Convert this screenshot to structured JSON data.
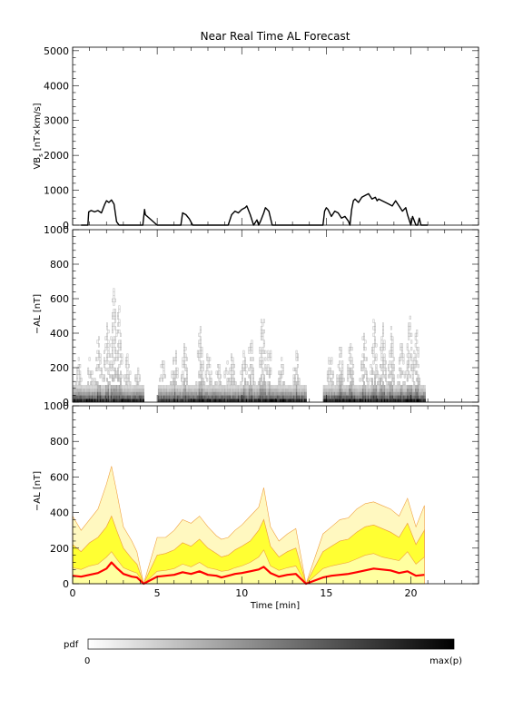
{
  "title": "Near Real Time AL Forecast",
  "colorbar": {
    "label": "pdf",
    "min_label": "0",
    "max_label": "max(p)",
    "from_color": "#ffffff",
    "to_color": "#000000"
  },
  "chart_data": [
    {
      "type": "line",
      "panel": "vbs",
      "ylabel": "VB",
      "ylabel_sub": "s",
      "ylabel_units": "[nT×km/s]",
      "ylim": [
        0,
        5100
      ],
      "yticks": [
        0,
        1000,
        2000,
        3000,
        4000,
        5000
      ],
      "xlim": [
        0,
        24
      ],
      "line_color": "#000000",
      "x": [
        0.5,
        0.9,
        0.95,
        1.1,
        1.3,
        1.5,
        1.7,
        1.9,
        2.0,
        2.15,
        2.3,
        2.45,
        2.6,
        2.75,
        3.0,
        4.0,
        4.15,
        4.25,
        4.3,
        5.0,
        5.05,
        5.15,
        5.25,
        5.5,
        6.0,
        6.3,
        6.4,
        6.5,
        6.7,
        6.9,
        7.1,
        8.0,
        8.5,
        8.8,
        9.0,
        9.2,
        9.4,
        9.6,
        9.8,
        10.0,
        10.2,
        10.3,
        10.5,
        10.7,
        10.9,
        11.0,
        11.1,
        11.3,
        11.4,
        11.6,
        11.8,
        12.0,
        12.5,
        13.0,
        13.5,
        14.0,
        14.5,
        14.8,
        14.9,
        15.0,
        15.1,
        15.3,
        15.5,
        15.7,
        15.9,
        16.1,
        16.3,
        16.4,
        16.5,
        16.6,
        16.7,
        16.9,
        17.1,
        17.3,
        17.5,
        17.7,
        17.9,
        18.0,
        18.1,
        18.3,
        18.5,
        18.7,
        18.9,
        19.1,
        19.3,
        19.5,
        19.7,
        19.8,
        20.0,
        20.1,
        20.3,
        20.4,
        20.5,
        20.6,
        20.7,
        20.8,
        21.0
      ],
      "y": [
        0,
        0,
        380,
        420,
        380,
        420,
        350,
        600,
        700,
        650,
        720,
        600,
        100,
        0,
        0,
        0,
        0,
        450,
        300,
        0,
        0,
        0,
        0,
        0,
        0,
        0,
        0,
        350,
        300,
        180,
        0,
        0,
        0,
        0,
        0,
        0,
        300,
        400,
        350,
        450,
        500,
        550,
        300,
        0,
        150,
        0,
        100,
        350,
        500,
        400,
        0,
        0,
        0,
        0,
        0,
        0,
        0,
        0,
        400,
        500,
        450,
        250,
        400,
        350,
        200,
        250,
        120,
        0,
        450,
        700,
        750,
        650,
        800,
        850,
        900,
        750,
        800,
        700,
        750,
        700,
        650,
        600,
        550,
        700,
        550,
        400,
        500,
        300,
        0,
        250,
        0,
        0,
        200,
        0,
        0,
        0,
        0
      ]
    },
    {
      "type": "heatmap",
      "panel": "pdf",
      "ylabel": "−AL [nT]",
      "ylim": [
        0,
        1000
      ],
      "yticks": [
        0,
        200,
        400,
        600,
        800,
        1000
      ],
      "xlim": [
        0,
        24
      ],
      "cmap": "white-to-black",
      "active_intervals": [
        [
          0,
          4.2
        ],
        [
          5.0,
          13.8
        ],
        [
          14.8,
          20.8
        ]
      ],
      "peaks": [
        {
          "x": 0.35,
          "h": 250
        },
        {
          "x": 1.0,
          "h": 260
        },
        {
          "x": 1.5,
          "h": 380
        },
        {
          "x": 2.0,
          "h": 480
        },
        {
          "x": 2.4,
          "h": 680
        },
        {
          "x": 2.7,
          "h": 560
        },
        {
          "x": 3.2,
          "h": 280
        },
        {
          "x": 3.8,
          "h": 200
        },
        {
          "x": 5.3,
          "h": 260
        },
        {
          "x": 6.0,
          "h": 330
        },
        {
          "x": 6.6,
          "h": 350
        },
        {
          "x": 7.5,
          "h": 430
        },
        {
          "x": 8.0,
          "h": 300
        },
        {
          "x": 8.6,
          "h": 270
        },
        {
          "x": 9.1,
          "h": 250
        },
        {
          "x": 9.4,
          "h": 290
        },
        {
          "x": 10.1,
          "h": 330
        },
        {
          "x": 10.5,
          "h": 380
        },
        {
          "x": 11.2,
          "h": 540
        },
        {
          "x": 11.6,
          "h": 330
        },
        {
          "x": 12.3,
          "h": 250
        },
        {
          "x": 13.2,
          "h": 310
        },
        {
          "x": 15.2,
          "h": 280
        },
        {
          "x": 15.8,
          "h": 320
        },
        {
          "x": 16.4,
          "h": 360
        },
        {
          "x": 17.2,
          "h": 420
        },
        {
          "x": 17.8,
          "h": 480
        },
        {
          "x": 18.3,
          "h": 460
        },
        {
          "x": 18.8,
          "h": 430
        },
        {
          "x": 19.4,
          "h": 360
        },
        {
          "x": 19.9,
          "h": 500
        },
        {
          "x": 20.3,
          "h": 420
        }
      ]
    },
    {
      "type": "area",
      "panel": "quantiles",
      "ylabel": "−AL [nT]",
      "xlabel": "Time [min]",
      "ylim": [
        0,
        1000
      ],
      "yticks": [
        0,
        200,
        400,
        600,
        800,
        1000
      ],
      "xlim": [
        0,
        24
      ],
      "xticks": [
        0,
        5,
        10,
        15,
        20
      ],
      "colors": {
        "outer": "#fff8c0",
        "mid": "#ffffa0",
        "inner": "#ffff33",
        "edge": "#f0a040",
        "median": "#ff0000"
      },
      "x": [
        0,
        0.5,
        1,
        1.5,
        2,
        2.3,
        2.6,
        3,
        3.5,
        3.8,
        4.2,
        5,
        5.5,
        6,
        6.5,
        7,
        7.5,
        8,
        8.5,
        8.8,
        9.2,
        9.6,
        10,
        10.5,
        11,
        11.3,
        11.7,
        12.2,
        12.7,
        13.2,
        13.8,
        14.8,
        15.3,
        15.8,
        16.3,
        16.8,
        17.3,
        17.8,
        18.3,
        18.8,
        19.3,
        19.8,
        20.3,
        20.8
      ],
      "upper": [
        380,
        300,
        360,
        420,
        560,
        660,
        520,
        320,
        240,
        180,
        0,
        260,
        260,
        300,
        360,
        340,
        380,
        320,
        270,
        250,
        260,
        300,
        330,
        380,
        430,
        540,
        320,
        240,
        280,
        310,
        0,
        280,
        320,
        360,
        370,
        420,
        450,
        460,
        440,
        420,
        380,
        480,
        320,
        440
      ],
      "q75": [
        220,
        180,
        230,
        260,
        320,
        380,
        300,
        200,
        140,
        110,
        0,
        160,
        170,
        190,
        230,
        210,
        250,
        200,
        170,
        150,
        160,
        190,
        210,
        240,
        300,
        360,
        210,
        150,
        180,
        200,
        0,
        180,
        210,
        240,
        250,
        290,
        320,
        330,
        310,
        290,
        260,
        340,
        220,
        300
      ],
      "q25": [
        90,
        80,
        100,
        110,
        150,
        180,
        140,
        90,
        70,
        60,
        0,
        70,
        75,
        85,
        110,
        95,
        120,
        90,
        80,
        70,
        75,
        90,
        100,
        120,
        150,
        190,
        100,
        75,
        90,
        100,
        0,
        85,
        100,
        110,
        120,
        140,
        160,
        170,
        150,
        140,
        130,
        180,
        110,
        150
      ],
      "median": [
        45,
        40,
        50,
        60,
        85,
        120,
        90,
        55,
        40,
        35,
        0,
        40,
        45,
        50,
        65,
        55,
        70,
        50,
        45,
        35,
        45,
        55,
        60,
        70,
        80,
        95,
        60,
        40,
        50,
        55,
        0,
        35,
        45,
        50,
        55,
        65,
        75,
        85,
        80,
        75,
        60,
        70,
        45,
        50
      ]
    }
  ]
}
